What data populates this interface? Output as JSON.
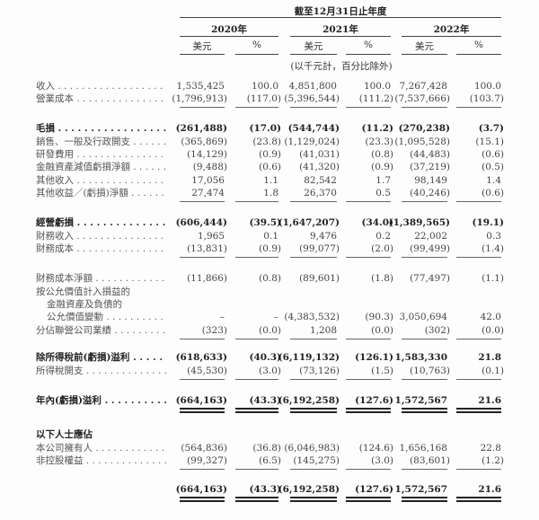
{
  "header": {
    "period": "截至12月31日止年度",
    "years": [
      "2020年",
      "2021年",
      "2022年"
    ],
    "units": [
      "美元",
      "%",
      "美元",
      "%",
      "美元",
      "%"
    ],
    "note": "(以千元計，百分比除外)"
  },
  "rows": [
    {
      "label": "收入",
      "values": [
        "1,535,425",
        "100.0",
        "4,851,800",
        "100.0",
        "7,267,428",
        "100.0"
      ]
    },
    {
      "label": "營業成本",
      "values": [
        "(1,796,913)",
        "(117.0)",
        "(5,396,544)",
        "(111.2)",
        "(7,537,666)",
        "(103.7)"
      ]
    },
    {
      "label": "毛損",
      "bold": true,
      "values": [
        "(261,488)",
        "(17.0)",
        "(544,744)",
        "(11.2)",
        "(270,238)",
        "(3.7)"
      ]
    },
    {
      "label": "銷售、一般及行政開支",
      "values": [
        "(365,869)",
        "(23.8)",
        "(1,129,024)",
        "(23.3)",
        "(1,095,528)",
        "(15.1)"
      ]
    },
    {
      "label": "研發費用",
      "values": [
        "(14,129)",
        "(0.9)",
        "(41,031)",
        "(0.8)",
        "(44,483)",
        "(0.6)"
      ]
    },
    {
      "label": "金融資產減值虧損淨額",
      "values": [
        "(9,488)",
        "(0.6)",
        "(41,320)",
        "(0.9)",
        "(37,219)",
        "(0.5)"
      ]
    },
    {
      "label": "其他收入",
      "values": [
        "17,056",
        "1.1",
        "82,542",
        "1.7",
        "98,149",
        "1.4"
      ]
    },
    {
      "label": "其他收益／(虧損)淨額",
      "values": [
        "27,474",
        "1.8",
        "26,370",
        "0.5",
        "(40,246)",
        "(0.6)"
      ]
    },
    {
      "label": "經營虧損",
      "bold": true,
      "values": [
        "(606,444)",
        "(39.5)",
        "(1,647,207)",
        "(34.0)",
        "(1,389,565)",
        "(19.1)"
      ]
    },
    {
      "label": "財務收入",
      "values": [
        "1,965",
        "0.1",
        "9,476",
        "0.2",
        "22,002",
        "0.3"
      ]
    },
    {
      "label": "財務成本",
      "values": [
        "(13,831)",
        "(0.9)",
        "(99,077)",
        "(2.0)",
        "(99,499)",
        "(1.4)"
      ]
    },
    {
      "label": "財務成本淨額",
      "values": [
        "(11,866)",
        "(0.8)",
        "(89,601)",
        "(1.8)",
        "(77,497)",
        "(1.1)"
      ]
    },
    {
      "label": "按公允價值計入損益的",
      "values": [
        "",
        "",
        "",
        "",
        "",
        ""
      ]
    },
    {
      "label": "金融資產及負債的",
      "values": [
        "",
        "",
        "",
        "",
        "",
        ""
      ]
    },
    {
      "label": "公允價值變動",
      "values": [
        "–",
        "–",
        "(4,383,532)",
        "(90.3)",
        "3,050,694",
        "42.0"
      ]
    },
    {
      "label": "分佔聯營公司業績",
      "values": [
        "(323)",
        "(0.0)",
        "1,208",
        "(0.0)",
        "(302)",
        "(0.0)"
      ]
    },
    {
      "label": "除所得稅前(虧損)溢利",
      "bold": true,
      "values": [
        "(618,633)",
        "(40.3)",
        "(6,119,132)",
        "(126.1)",
        "1,583,330",
        "21.8"
      ]
    },
    {
      "label": "所得稅開支",
      "values": [
        "(45,530)",
        "(3.0)",
        "(73,126)",
        "(1.5)",
        "(10,763)",
        "(0.1)"
      ]
    },
    {
      "label": "年內(虧損)溢利",
      "bold": true,
      "values": [
        "(664,163)",
        "(43.3)",
        "(6,192,258)",
        "(127.6)",
        "1,572,567",
        "21.6"
      ]
    },
    {
      "label": "以下人士應佔",
      "bold": true,
      "values": [
        "",
        "",
        "",
        "",
        "",
        ""
      ]
    },
    {
      "label": "本公司擁有人",
      "values": [
        "(564,836)",
        "(36.8)",
        "(6,046,983)",
        "(124.6)",
        "1,656,168",
        "22.8"
      ]
    },
    {
      "label": "非控股權益",
      "values": [
        "(99,327)",
        "(6.5)",
        "(145,275)",
        "(3.0)",
        "(83,601)",
        "(1.2)"
      ]
    },
    {
      "label": "",
      "bold": true,
      "values": [
        "(664,163)",
        "(43.3)",
        "(6,192,258)",
        "(127.6)",
        "1,572,567",
        "21.6"
      ]
    }
  ]
}
